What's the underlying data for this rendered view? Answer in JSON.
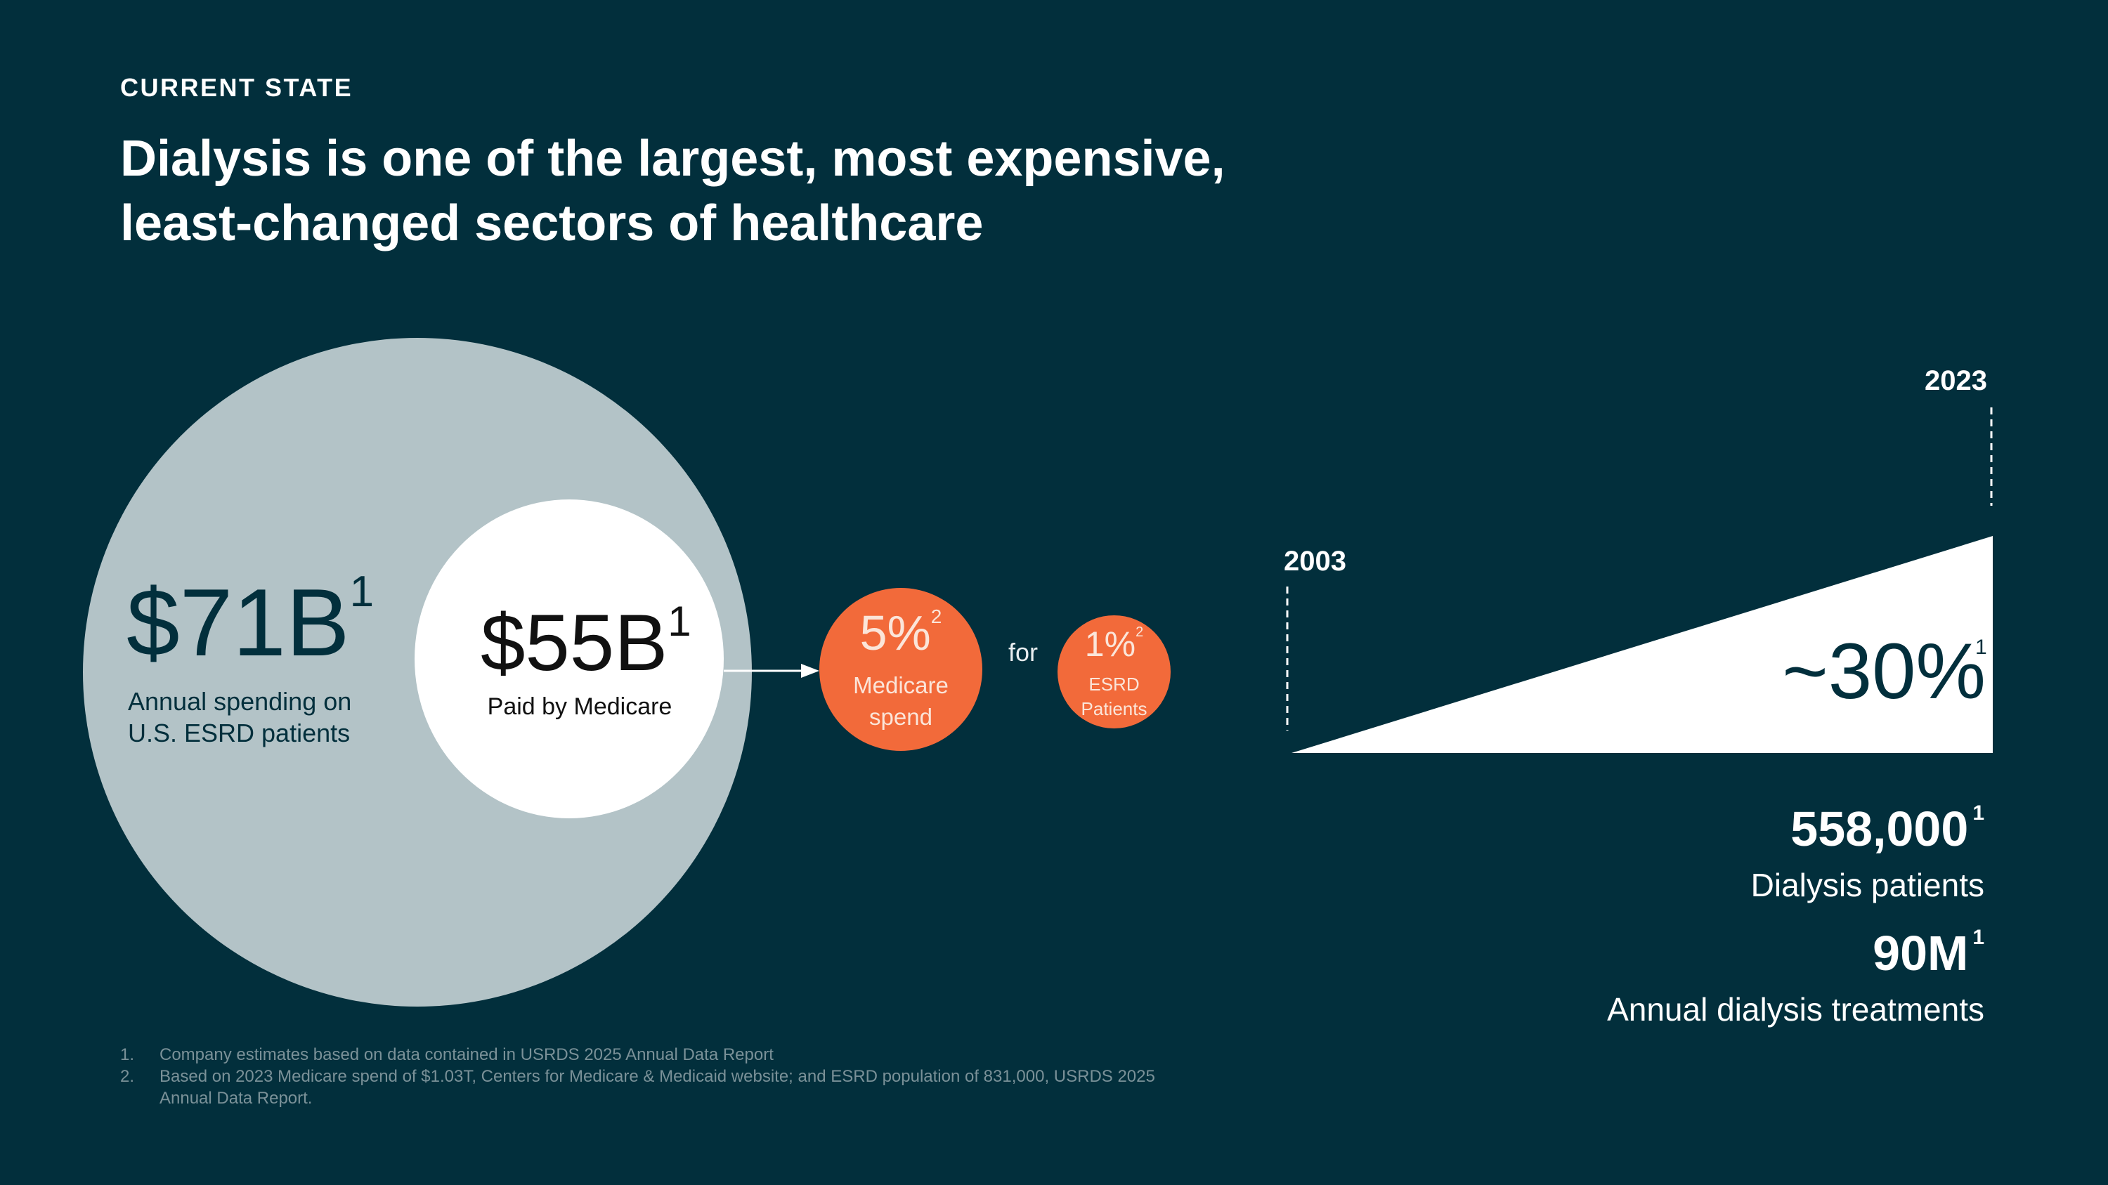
{
  "header": {
    "eyebrow": "CURRENT STATE",
    "title_line1": "Dialysis is one of the largest, most expensive,",
    "title_line2": "least-changed sectors of healthcare"
  },
  "spending": {
    "total_value": "$71B",
    "total_note": "1",
    "total_label_line1": "Annual spending on",
    "total_label_line2": "U.S. ESRD patients",
    "medicare_value": "$55B",
    "medicare_note": "1",
    "medicare_label": "Paid by Medicare"
  },
  "share": {
    "medicare_spend_value": "5%",
    "medicare_spend_note": "2",
    "medicare_spend_label_line1": "Medicare",
    "medicare_spend_label_line2": "spend",
    "connector": "for",
    "patients_value": "1%",
    "patients_note": "2",
    "patients_label_line1": "ESRD",
    "patients_label_line2": "Patients"
  },
  "growth": {
    "start_year": "2003",
    "end_year": "2023",
    "value": "~30%",
    "note": "1"
  },
  "stats": [
    {
      "value": "558,000",
      "note": "1",
      "label": "Dialysis patients"
    },
    {
      "value": "90M",
      "note": "1",
      "label": "Annual dialysis treatments"
    }
  ],
  "footnotes": [
    {
      "num": "1.",
      "text": "Company estimates based on data contained in USRDS 2025 Annual Data Report"
    },
    {
      "num": "2.",
      "text": "Based on 2023 Medicare spend of $1.03T, Centers for Medicare & Medicaid website; and ESRD population of 831,000, USRDS 2025 Annual Data Report."
    }
  ],
  "colors": {
    "background": "#022f3c",
    "outer_circle": "#b3c3c7",
    "accent_orange": "#f26a3a",
    "white": "#ffffff"
  }
}
